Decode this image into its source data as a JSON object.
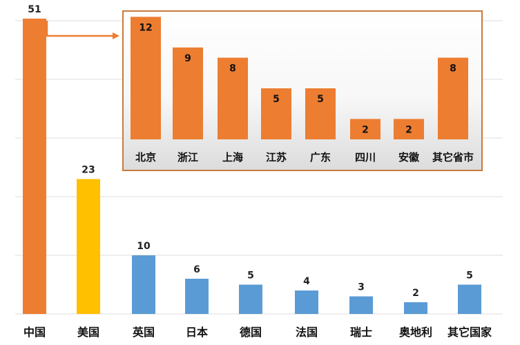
{
  "chart_data": [
    {
      "type": "bar",
      "categories": [
        "中国",
        "美国",
        "英国",
        "日本",
        "德国",
        "法国",
        "瑞士",
        "奥地利",
        "其它国家"
      ],
      "values": [
        51,
        23,
        10,
        6,
        5,
        4,
        3,
        2,
        5
      ],
      "bar_colors": [
        "#ED7D31",
        "#FFC000",
        "#5B9BD5",
        "#5B9BD5",
        "#5B9BD5",
        "#5B9BD5",
        "#5B9BD5",
        "#5B9BD5",
        "#5B9BD5"
      ],
      "ylim": [
        0,
        50
      ],
      "grid": true
    },
    {
      "type": "bar",
      "breakdown_of": "中国",
      "categories": [
        "北京",
        "浙江",
        "上海",
        "江苏",
        "广东",
        "四川",
        "安徽",
        "其它省市"
      ],
      "values": [
        12,
        9,
        8,
        5,
        5,
        2,
        2,
        8
      ],
      "bar_color": "#ED7D31",
      "border_color": "#C97A3A"
    }
  ]
}
